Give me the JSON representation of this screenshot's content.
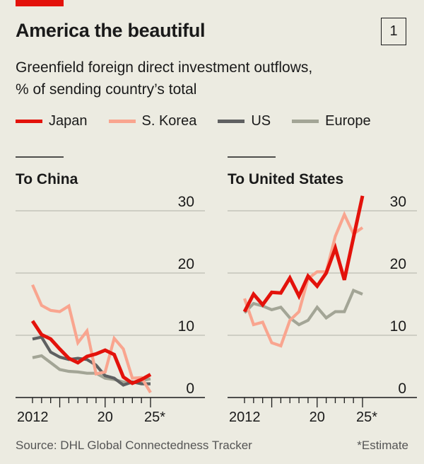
{
  "title": "America the beautiful",
  "chart_number": "1",
  "subtitle_line1": "Greenfield foreign direct investment outflows,",
  "subtitle_line2": "% of sending country’s total",
  "legend": [
    {
      "name": "Japan",
      "color": "#e3120b"
    },
    {
      "name": "S. Korea",
      "color": "#f9a58f"
    },
    {
      "name": "US",
      "color": "#5f6061"
    },
    {
      "name": "Europe",
      "color": "#a3a596"
    }
  ],
  "source": "Source: DHL Global Connectedness Tracker",
  "footnote": "*Estimate",
  "chart_data": [
    {
      "type": "line",
      "title": "To China",
      "x": [
        2012,
        2013,
        2014,
        2015,
        2016,
        2017,
        2018,
        2019,
        2020,
        2021,
        2022,
        2023,
        2024,
        2025
      ],
      "xticklabels": [
        "2012",
        "20",
        "25*"
      ],
      "ylim": [
        0,
        30
      ],
      "yticks": [
        0,
        10,
        20,
        30
      ],
      "grid": true,
      "series": [
        {
          "name": "Europe",
          "values": [
            6.4,
            6.7,
            5.6,
            4.5,
            4.2,
            4.1,
            3.9,
            3.9,
            3.1,
            2.9,
            2.5,
            2.3,
            2.7,
            3.0
          ]
        },
        {
          "name": "US",
          "values": [
            9.4,
            9.7,
            7.3,
            6.5,
            6.1,
            6.3,
            6.1,
            5.2,
            3.5,
            3.1,
            2.0,
            2.5,
            2.2,
            2.2
          ]
        },
        {
          "name": "S. Korea",
          "values": [
            18.1,
            14.8,
            14.0,
            13.8,
            14.7,
            8.8,
            10.7,
            3.8,
            4.1,
            9.5,
            7.8,
            3.1,
            3.2,
            0.8
          ]
        },
        {
          "name": "Japan",
          "values": [
            12.3,
            10.1,
            9.4,
            7.8,
            6.3,
            5.6,
            6.6,
            7.0,
            7.6,
            6.9,
            3.3,
            2.3,
            2.9,
            3.7
          ]
        }
      ]
    },
    {
      "type": "line",
      "title": "To United States",
      "x": [
        2012,
        2013,
        2014,
        2015,
        2016,
        2017,
        2018,
        2019,
        2020,
        2021,
        2022,
        2023,
        2024,
        2025
      ],
      "xticklabels": [
        "2012",
        "20",
        "25*"
      ],
      "ylim": [
        0,
        30
      ],
      "yticks": [
        0,
        10,
        20,
        30
      ],
      "grid": true,
      "series": [
        {
          "name": "Europe",
          "values": [
            13.6,
            15.1,
            14.7,
            14.1,
            14.5,
            12.8,
            11.7,
            12.4,
            14.5,
            12.8,
            13.8,
            13.8,
            17.2,
            16.6
          ]
        },
        {
          "name": "S. Korea",
          "values": [
            15.9,
            11.7,
            12.1,
            8.8,
            8.3,
            12.4,
            13.8,
            19.1,
            20.2,
            20.2,
            25.9,
            29.4,
            26.3,
            27.3
          ]
        },
        {
          "name": "Japan",
          "values": [
            13.8,
            16.6,
            14.9,
            16.9,
            16.8,
            19.2,
            16.3,
            19.5,
            17.9,
            20.0,
            24.0,
            18.9,
            25.7,
            32.4
          ]
        }
      ]
    }
  ]
}
